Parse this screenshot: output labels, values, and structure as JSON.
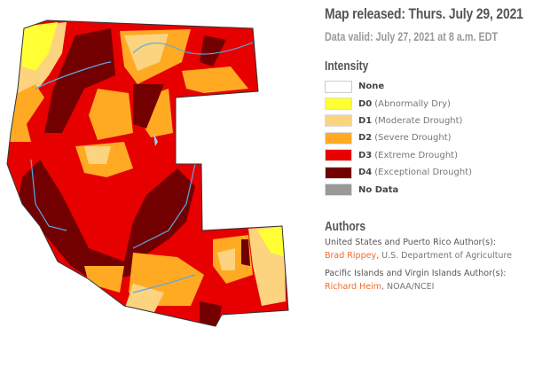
{
  "header": {
    "title": "Map released: Thurs. July 29, 2021",
    "subtitle": "Data valid: July 27, 2021 at 8 a.m. EDT"
  },
  "legend": {
    "heading": "Intensity",
    "items": [
      {
        "code": "None",
        "desc": "",
        "color": "#ffffff"
      },
      {
        "code": "D0",
        "desc": "(Abnormally Dry)",
        "color": "#ffff33"
      },
      {
        "code": "D1",
        "desc": "(Moderate Drought)",
        "color": "#fcd37f"
      },
      {
        "code": "D2",
        "desc": "(Severe Drought)",
        "color": "#ffaa22"
      },
      {
        "code": "D3",
        "desc": "(Extreme Drought)",
        "color": "#e60000"
      },
      {
        "code": "D4",
        "desc": "(Exceptional Drought)",
        "color": "#730000"
      },
      {
        "code": "No Data",
        "desc": "",
        "color": "#999999"
      }
    ]
  },
  "authors": {
    "heading": "Authors",
    "us_label": "United States and Puerto Rico Author(s):",
    "us_name": "Brad Rippey",
    "us_org": ", U.S. Department of Agriculture",
    "pi_label": "Pacific Islands and Virgin Islands Author(s):",
    "pi_name": "Richard Heim",
    "pi_org": ", NOAA/NCEI"
  },
  "map": {
    "water_color": "#5aa9e6",
    "border_color": "#333333"
  }
}
